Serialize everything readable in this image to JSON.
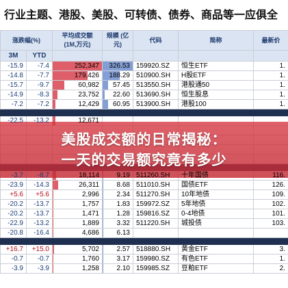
{
  "header_title": "行业主题、港股、美股、可转债、债券、商品等一应俱全",
  "table": {
    "group_header": [
      "涨跌幅(%)",
      "",
      "平均成交额\n(1M,万元)",
      "规模\n(亿元)",
      "代码",
      "简称",
      "最新价"
    ],
    "sub_header": [
      "3M",
      "YTD"
    ],
    "groups": [
      {
        "rows": [
          {
            "m3": "-15.9",
            "ytd": "-7.4",
            "turnover": "252,347",
            "scale": "326.53",
            "code": "159920.SZ",
            "name": "恒生ETF",
            "last": "1."
          },
          {
            "m3": "-14.8",
            "ytd": "-7.7",
            "turnover": "179,426",
            "scale": "188.29",
            "code": "510900.SH",
            "name": "H股ETF",
            "last": "1."
          },
          {
            "m3": "-15.7",
            "ytd": "-9.7",
            "turnover": "60,982",
            "scale": "57.45",
            "code": "513550.SH",
            "name": "港股通50",
            "last": "1."
          },
          {
            "m3": "-14.9",
            "ytd": "-8.3",
            "turnover": "23,752",
            "scale": "22.60",
            "code": "513690.SH",
            "name": "恒生股息",
            "last": "1."
          },
          {
            "m3": "-7.2",
            "ytd": "-7.2",
            "turnover": "12,429",
            "scale": "60.95",
            "code": "513900.SH",
            "name": "港股100",
            "last": "1."
          }
        ]
      },
      {
        "rows": [
          {
            "m3": "-22.5",
            "ytd": "-13.2",
            "turnover": "12,671",
            "scale": "",
            "code": "",
            "name": "",
            "last": ""
          },
          {
            "m3": "",
            "ytd": "",
            "turnover": "",
            "scale": "",
            "code": "",
            "name": "",
            "last": ""
          },
          {
            "m3": "",
            "ytd": "",
            "turnover": "",
            "scale": "",
            "code": "",
            "name": "",
            "last": ""
          },
          {
            "m3": "",
            "ytd": "",
            "turnover": "",
            "scale": "",
            "code": "",
            "name": "",
            "last": ""
          },
          {
            "m3": "",
            "ytd": "",
            "turnover": "",
            "scale": "",
            "code": "",
            "name": "",
            "last": ""
          }
        ]
      },
      {
        "rows": [
          {
            "m3": "-3.7",
            "ytd": "-8.7",
            "turnover": "18,114",
            "scale": "9.19",
            "code": "511260.SH",
            "name": "十年国债",
            "last": "116."
          },
          {
            "m3": "-23.9",
            "ytd": "-14.3",
            "turnover": "26,311",
            "scale": "8.68",
            "code": "511010.SH",
            "name": "国债ETF",
            "last": "126."
          },
          {
            "m3": "+5.6",
            "ytd": "+5.6",
            "turnover": "2,996",
            "scale": "2.34",
            "code": "511270.SH",
            "name": "10年地债",
            "last": "109."
          },
          {
            "m3": "-20.2",
            "ytd": "-13.7",
            "turnover": "1,757",
            "scale": "1.83",
            "code": "159972.SZ",
            "name": "5年地债",
            "last": "102."
          },
          {
            "m3": "-20.2",
            "ytd": "-13.7",
            "turnover": "1,471",
            "scale": "1.28",
            "code": "159816.SZ",
            "name": "0-4地债",
            "last": "101."
          },
          {
            "m3": "-22.9",
            "ytd": "-13.2",
            "turnover": "1,889",
            "scale": "3.32",
            "code": "511220.SH",
            "name": "城投债",
            "last": "103."
          },
          {
            "m3": "-20.8",
            "ytd": "-16.4",
            "turnover": "4,686",
            "scale": "6.13",
            "code": "",
            "name": "",
            "last": ""
          }
        ]
      },
      {
        "rows": [
          {
            "m3": "+16.7",
            "ytd": "+15.0",
            "turnover": "5,702",
            "scale": "2.57",
            "code": "518880.SH",
            "name": "黄金ETF",
            "last": "3."
          },
          {
            "m3": "-0.7",
            "ytd": "-0.7",
            "turnover": "1,760",
            "scale": "3.17",
            "code": "159980.SZ",
            "name": "有色ETF",
            "last": "1."
          },
          {
            "m3": "-3.9",
            "ytd": "-3.9",
            "turnover": "1,258",
            "scale": "2.10",
            "code": "159985.SZ",
            "name": "豆粕ETF",
            "last": "2."
          }
        ]
      }
    ]
  },
  "banner": {
    "line1": "美股成交额的日常揭秘：",
    "line2": "一天的交易额究竟有多少"
  },
  "colors": {
    "header_bg": "#dbe4f2",
    "separator": "#1f2f4f",
    "bar_red": "#d8434f",
    "bar_blue": "#5b7fc7",
    "negative_blue": "#1e3f7a",
    "positive_red": "#b3101a"
  }
}
